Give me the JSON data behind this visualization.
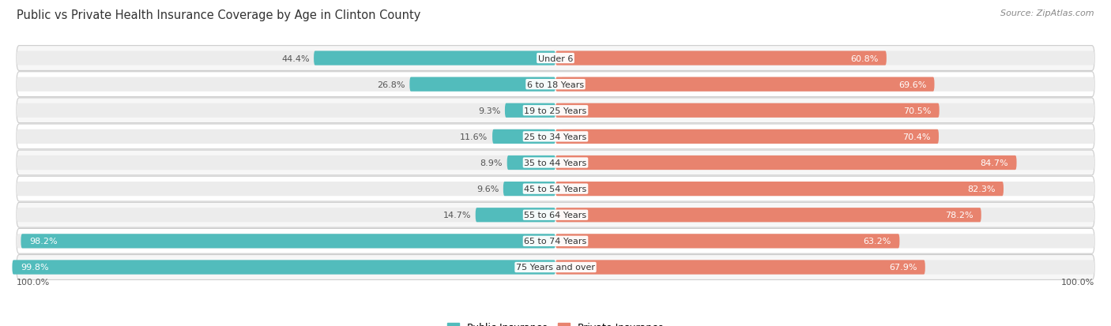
{
  "title": "Public vs Private Health Insurance Coverage by Age in Clinton County",
  "source": "Source: ZipAtlas.com",
  "categories": [
    "Under 6",
    "6 to 18 Years",
    "19 to 25 Years",
    "25 to 34 Years",
    "35 to 44 Years",
    "45 to 54 Years",
    "55 to 64 Years",
    "65 to 74 Years",
    "75 Years and over"
  ],
  "public_values": [
    44.4,
    26.8,
    9.3,
    11.6,
    8.9,
    9.6,
    14.7,
    98.2,
    99.8
  ],
  "private_values": [
    60.8,
    69.6,
    70.5,
    70.4,
    84.7,
    82.3,
    78.2,
    63.2,
    67.9
  ],
  "public_color": "#52BCBC",
  "private_color": "#E8836E",
  "private_color_light": "#F0A898",
  "row_bg_even": "#F7F7F7",
  "row_bg_odd": "#FFFFFF",
  "bar_bg_color": "#ECECEC",
  "max_value": 100.0,
  "legend_public": "Public Insurance",
  "legend_private": "Private Insurance",
  "bottom_left_label": "100.0%",
  "bottom_right_label": "100.0%",
  "title_fontsize": 10.5,
  "source_fontsize": 8,
  "value_fontsize": 8,
  "category_fontsize": 8,
  "legend_fontsize": 9
}
